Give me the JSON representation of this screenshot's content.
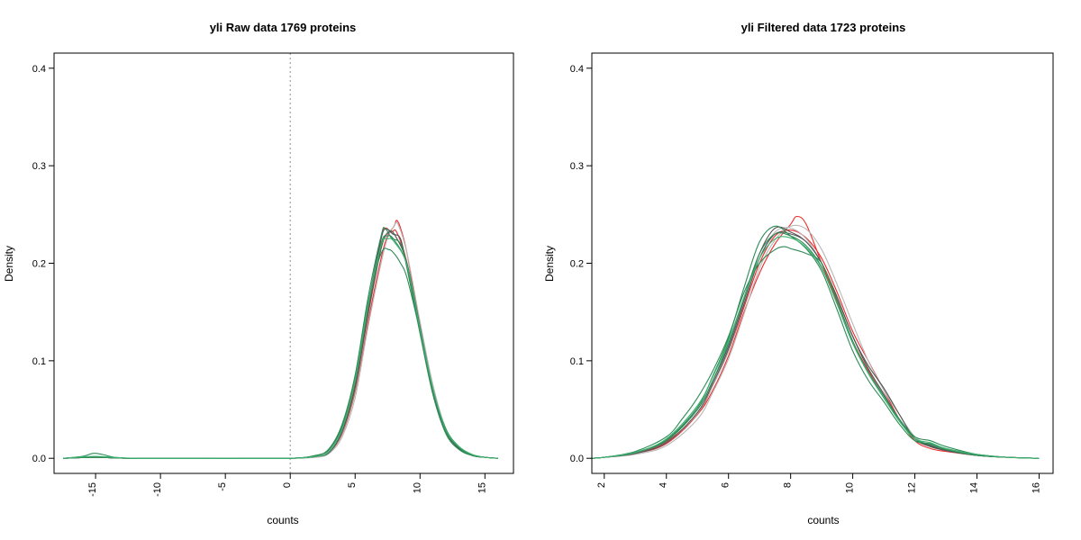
{
  "chart_data": [
    {
      "type": "line",
      "title": "yli  Raw data  1769  proteins",
      "xlabel": "counts",
      "ylabel": "Density",
      "xlim": [
        -18.2,
        17.2
      ],
      "ylim": [
        -0.0155,
        0.4155
      ],
      "xticks": [
        -15,
        -10,
        -5,
        0,
        5,
        10,
        15
      ],
      "yticks": [
        0.0,
        0.1,
        0.2,
        0.3,
        0.4
      ],
      "xtick_labels": [
        "-15",
        "-10",
        "-5",
        "0",
        "5",
        "10",
        "15"
      ],
      "ytick_labels": [
        "0.0",
        "0.1",
        "0.2",
        "0.3",
        "0.4"
      ],
      "xtick_rotation": "vertical",
      "reference_line": {
        "x": 0,
        "style": "dotted",
        "color": "#a0a0a0"
      },
      "grid": false,
      "series": [
        {
          "color": "#ee2c2c",
          "x": [
            -17.5,
            -15,
            -12,
            -5,
            0,
            2,
            3,
            4,
            5,
            6,
            7,
            7.5,
            8,
            8.2,
            8.5,
            9,
            10,
            11,
            12,
            13,
            14,
            15,
            16
          ],
          "y": [
            0,
            0.001,
            0,
            0,
            0,
            0.002,
            0.006,
            0.025,
            0.068,
            0.14,
            0.205,
            0.228,
            0.238,
            0.244,
            0.236,
            0.21,
            0.135,
            0.072,
            0.03,
            0.01,
            0.003,
            0.001,
            0
          ]
        },
        {
          "color": "#ee2c2c",
          "x": [
            -17.5,
            -15,
            -12,
            -5,
            0,
            2,
            3,
            4,
            5,
            6,
            7,
            7.3,
            7.8,
            8.2,
            9,
            10,
            11,
            12,
            13,
            14,
            15,
            16
          ],
          "y": [
            0,
            0.001,
            0,
            0,
            0,
            0.002,
            0.007,
            0.028,
            0.075,
            0.15,
            0.225,
            0.236,
            0.232,
            0.232,
            0.2,
            0.13,
            0.07,
            0.028,
            0.01,
            0.003,
            0.001,
            0
          ]
        },
        {
          "color": "#b8b8b8",
          "x": [
            -17.5,
            -15,
            -12,
            -5,
            0,
            2,
            3,
            4,
            5,
            6,
            7,
            7.5,
            8,
            8.3,
            9,
            10,
            11,
            12,
            13,
            14,
            15,
            16
          ],
          "y": [
            0,
            0.001,
            0,
            0,
            0,
            0.001,
            0.005,
            0.022,
            0.062,
            0.135,
            0.2,
            0.226,
            0.238,
            0.24,
            0.21,
            0.14,
            0.075,
            0.03,
            0.01,
            0.003,
            0.001,
            0
          ]
        },
        {
          "color": "#b8b8b8",
          "x": [
            -17.5,
            -15,
            -12,
            -5,
            0,
            2,
            3,
            4,
            5,
            6,
            7,
            7.5,
            8,
            9,
            10,
            11,
            12,
            13,
            14,
            15,
            16
          ],
          "y": [
            0,
            0.001,
            0,
            0,
            0,
            0.002,
            0.006,
            0.026,
            0.07,
            0.145,
            0.215,
            0.232,
            0.23,
            0.2,
            0.132,
            0.07,
            0.028,
            0.01,
            0.003,
            0.001,
            0
          ]
        },
        {
          "color": "#555555",
          "x": [
            -17.5,
            -15,
            -12,
            -5,
            0,
            2,
            3,
            4,
            5,
            6,
            7,
            7.4,
            7.9,
            8.5,
            9,
            10,
            11,
            12,
            13,
            14,
            15,
            16
          ],
          "y": [
            0,
            0.001,
            0,
            0,
            0,
            0.002,
            0.007,
            0.03,
            0.08,
            0.158,
            0.225,
            0.235,
            0.23,
            0.225,
            0.195,
            0.13,
            0.068,
            0.027,
            0.01,
            0.003,
            0.001,
            0
          ]
        },
        {
          "color": "#555555",
          "x": [
            -17.5,
            -15,
            -12,
            -5,
            0,
            2,
            3,
            4,
            5,
            6,
            7,
            7.6,
            8.1,
            9,
            10,
            11,
            12,
            13,
            14,
            15,
            16
          ],
          "y": [
            0,
            0.001,
            0,
            0,
            0,
            0.002,
            0.006,
            0.027,
            0.072,
            0.148,
            0.215,
            0.232,
            0.228,
            0.2,
            0.135,
            0.07,
            0.028,
            0.01,
            0.003,
            0.001,
            0
          ]
        },
        {
          "color": "#2e8b57",
          "x": [
            -17.5,
            -16,
            -15.2,
            -14.5,
            -13.5,
            -12,
            -5,
            0,
            2,
            3,
            4,
            5,
            6,
            7,
            7.6,
            8,
            8.5,
            9,
            10,
            11,
            12,
            13,
            14,
            15,
            16
          ],
          "y": [
            0,
            0.002,
            0.005,
            0.004,
            0.001,
            0,
            0,
            0,
            0.003,
            0.01,
            0.035,
            0.085,
            0.16,
            0.21,
            0.214,
            0.21,
            0.2,
            0.185,
            0.13,
            0.07,
            0.028,
            0.011,
            0.003,
            0.001,
            0
          ]
        },
        {
          "color": "#2e8b57",
          "x": [
            -17.5,
            -15,
            -12,
            -5,
            0,
            2,
            3,
            4,
            5,
            6,
            7,
            7.3,
            7.8,
            8.5,
            9,
            10,
            11,
            12,
            13,
            14,
            15,
            16
          ],
          "y": [
            0,
            0.001,
            0,
            0,
            0,
            0.003,
            0.009,
            0.033,
            0.085,
            0.165,
            0.228,
            0.236,
            0.226,
            0.22,
            0.195,
            0.128,
            0.065,
            0.025,
            0.009,
            0.003,
            0.001,
            0
          ]
        },
        {
          "color": "#2e8b57",
          "x": [
            -17.5,
            -15,
            -12,
            -5,
            0,
            2,
            3,
            4,
            5,
            6,
            7,
            7.5,
            8,
            9,
            10,
            11,
            12,
            13,
            14,
            15,
            16
          ],
          "y": [
            0,
            0.001,
            0,
            0,
            0,
            0.002,
            0.007,
            0.03,
            0.078,
            0.155,
            0.22,
            0.228,
            0.224,
            0.198,
            0.132,
            0.07,
            0.03,
            0.012,
            0.004,
            0.001,
            0
          ]
        },
        {
          "color": "#3cb371",
          "x": [
            -17.5,
            -15,
            -12,
            -5,
            0,
            2,
            3,
            4,
            5,
            6,
            7,
            7.5,
            8,
            9,
            10,
            11,
            12,
            13,
            14,
            15,
            16
          ],
          "y": [
            0,
            0.002,
            0,
            0,
            0,
            0.002,
            0.007,
            0.03,
            0.08,
            0.158,
            0.218,
            0.225,
            0.222,
            0.198,
            0.133,
            0.071,
            0.029,
            0.012,
            0.004,
            0.001,
            0
          ]
        }
      ]
    },
    {
      "type": "line",
      "title": "yli  Filtered data 1723  proteins",
      "xlabel": "counts",
      "ylabel": "Density",
      "xlim": [
        1.6,
        16.45
      ],
      "ylim": [
        -0.0155,
        0.4155
      ],
      "xticks": [
        2,
        4,
        6,
        8,
        10,
        12,
        14,
        16
      ],
      "yticks": [
        0.0,
        0.1,
        0.2,
        0.3,
        0.4
      ],
      "xtick_labels": [
        "2",
        "4",
        "6",
        "8",
        "10",
        "12",
        "14",
        "16"
      ],
      "ytick_labels": [
        "0.0",
        "0.1",
        "0.2",
        "0.3",
        "0.4"
      ],
      "xtick_rotation": "vertical",
      "grid": false,
      "series": [
        {
          "color": "#ee2c2c",
          "x": [
            1.6,
            2,
            3,
            4,
            5,
            5.5,
            6,
            6.5,
            7,
            7.5,
            8,
            8.2,
            8.5,
            9,
            9.5,
            10,
            10.5,
            11,
            11.5,
            12,
            12.5,
            13,
            14,
            15,
            16
          ],
          "y": [
            0,
            0.001,
            0.005,
            0.017,
            0.045,
            0.07,
            0.105,
            0.15,
            0.19,
            0.22,
            0.24,
            0.248,
            0.24,
            0.2,
            0.16,
            0.12,
            0.09,
            0.065,
            0.04,
            0.02,
            0.012,
            0.008,
            0.003,
            0.001,
            0
          ]
        },
        {
          "color": "#ee2c2c",
          "x": [
            1.6,
            2,
            3,
            4,
            5,
            5.5,
            6,
            6.5,
            7,
            7.5,
            8,
            8.5,
            9,
            9.5,
            10,
            10.5,
            11,
            11.5,
            12,
            12.5,
            13,
            14,
            15,
            16
          ],
          "y": [
            0,
            0.001,
            0.005,
            0.015,
            0.045,
            0.075,
            0.11,
            0.155,
            0.2,
            0.228,
            0.234,
            0.226,
            0.205,
            0.17,
            0.13,
            0.1,
            0.07,
            0.04,
            0.018,
            0.01,
            0.007,
            0.003,
            0.001,
            0
          ]
        },
        {
          "color": "#b8b8b8",
          "x": [
            1.6,
            2,
            3,
            4,
            5,
            5.5,
            6,
            6.5,
            7,
            7.5,
            8,
            8.5,
            9,
            9.5,
            10,
            10.5,
            11,
            11.5,
            12,
            12.5,
            13,
            14,
            15,
            16
          ],
          "y": [
            0,
            0.001,
            0.004,
            0.013,
            0.04,
            0.068,
            0.102,
            0.148,
            0.195,
            0.224,
            0.238,
            0.235,
            0.214,
            0.178,
            0.138,
            0.1,
            0.07,
            0.045,
            0.022,
            0.013,
            0.008,
            0.003,
            0.001,
            0
          ]
        },
        {
          "color": "#b8b8b8",
          "x": [
            1.6,
            2,
            3,
            4,
            5,
            5.5,
            6,
            6.5,
            7,
            7.5,
            8,
            8.5,
            9,
            9.5,
            10,
            10.5,
            11,
            11.5,
            12,
            12.5,
            13,
            14,
            15,
            16
          ],
          "y": [
            0,
            0.001,
            0.005,
            0.016,
            0.046,
            0.075,
            0.11,
            0.158,
            0.205,
            0.232,
            0.236,
            0.225,
            0.2,
            0.165,
            0.125,
            0.092,
            0.065,
            0.04,
            0.02,
            0.012,
            0.008,
            0.003,
            0.001,
            0
          ]
        },
        {
          "color": "#555555",
          "x": [
            1.6,
            2,
            3,
            4,
            5,
            5.5,
            6,
            6.5,
            7,
            7.5,
            8,
            8.5,
            9,
            9.5,
            10,
            10.5,
            11,
            11.5,
            12,
            12.5,
            13,
            14,
            15,
            16
          ],
          "y": [
            0,
            0.001,
            0.006,
            0.018,
            0.05,
            0.08,
            0.115,
            0.162,
            0.21,
            0.236,
            0.232,
            0.222,
            0.2,
            0.165,
            0.125,
            0.095,
            0.072,
            0.045,
            0.02,
            0.012,
            0.008,
            0.003,
            0.001,
            0
          ]
        },
        {
          "color": "#555555",
          "x": [
            1.6,
            2,
            3,
            4,
            5,
            5.5,
            6,
            6.5,
            7,
            7.5,
            8,
            8.5,
            9,
            9.5,
            10,
            10.5,
            11,
            11.5,
            12,
            12.5,
            13,
            14,
            15,
            16
          ],
          "y": [
            0,
            0.001,
            0.005,
            0.016,
            0.047,
            0.077,
            0.112,
            0.158,
            0.205,
            0.23,
            0.23,
            0.222,
            0.2,
            0.165,
            0.125,
            0.092,
            0.066,
            0.04,
            0.02,
            0.013,
            0.008,
            0.003,
            0.001,
            0
          ]
        },
        {
          "color": "#2e8b57",
          "x": [
            1.6,
            2,
            3,
            4,
            4.5,
            5,
            5.5,
            6,
            6.5,
            7,
            7.5,
            7.8,
            8,
            8.5,
            9,
            9.5,
            10,
            10.5,
            11,
            11.5,
            12,
            12.5,
            13,
            14,
            15,
            16
          ],
          "y": [
            0,
            0.001,
            0.007,
            0.022,
            0.04,
            0.062,
            0.09,
            0.125,
            0.17,
            0.2,
            0.214,
            0.217,
            0.215,
            0.21,
            0.2,
            0.162,
            0.12,
            0.088,
            0.062,
            0.04,
            0.022,
            0.018,
            0.012,
            0.004,
            0.001,
            0
          ]
        },
        {
          "color": "#2e8b57",
          "x": [
            1.6,
            2,
            3,
            4,
            5,
            5.5,
            6,
            6.5,
            7,
            7.5,
            8,
            8.5,
            9,
            9.5,
            10,
            10.5,
            11,
            11.5,
            12,
            12.5,
            13,
            14,
            15,
            16
          ],
          "y": [
            0,
            0.001,
            0.006,
            0.019,
            0.052,
            0.085,
            0.123,
            0.175,
            0.222,
            0.238,
            0.228,
            0.215,
            0.192,
            0.152,
            0.11,
            0.08,
            0.058,
            0.035,
            0.018,
            0.015,
            0.01,
            0.004,
            0.001,
            0
          ]
        },
        {
          "color": "#2e8b57",
          "x": [
            1.6,
            2,
            3,
            4,
            5,
            5.5,
            6,
            6.5,
            7,
            7.5,
            8,
            8.5,
            9,
            9.5,
            10,
            10.5,
            11,
            11.5,
            12,
            12.5,
            13,
            14,
            15,
            16
          ],
          "y": [
            0,
            0.001,
            0.006,
            0.018,
            0.05,
            0.08,
            0.118,
            0.165,
            0.21,
            0.23,
            0.228,
            0.218,
            0.196,
            0.158,
            0.118,
            0.088,
            0.064,
            0.04,
            0.02,
            0.014,
            0.009,
            0.003,
            0.001,
            0
          ]
        },
        {
          "color": "#3cb371",
          "x": [
            1.6,
            2,
            3,
            4,
            5,
            5.5,
            6,
            6.5,
            7,
            7.5,
            8,
            8.5,
            9,
            9.5,
            10,
            10.5,
            11,
            11.5,
            12,
            12.5,
            13,
            14,
            15,
            16
          ],
          "y": [
            0,
            0.001,
            0.006,
            0.02,
            0.054,
            0.084,
            0.12,
            0.165,
            0.205,
            0.225,
            0.226,
            0.216,
            0.195,
            0.158,
            0.118,
            0.087,
            0.062,
            0.038,
            0.02,
            0.016,
            0.01,
            0.004,
            0.001,
            0
          ]
        }
      ]
    }
  ]
}
